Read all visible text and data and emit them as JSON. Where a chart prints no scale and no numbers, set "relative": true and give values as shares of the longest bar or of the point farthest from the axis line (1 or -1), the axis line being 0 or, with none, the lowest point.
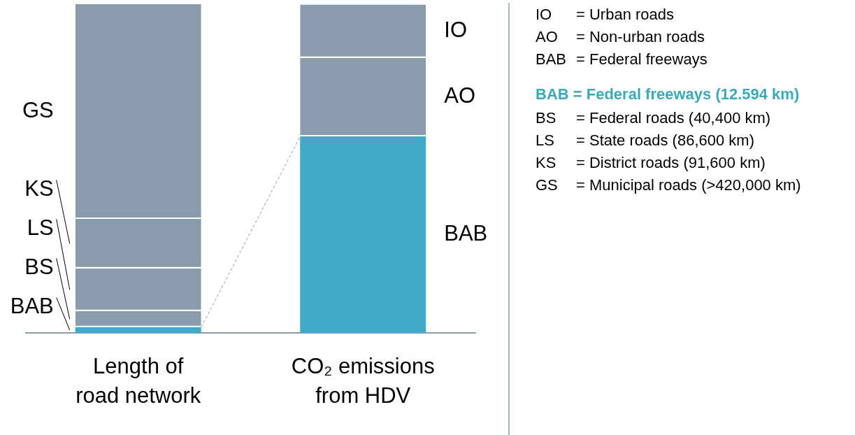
{
  "chart_data": {
    "type": "bar",
    "stacked": true,
    "relative": true,
    "legend": false,
    "grid": false,
    "categories": [
      "Length of\nroad network",
      "CO₂ emissions\nfrom HDV"
    ],
    "series": [
      {
        "name": "BAB",
        "color": "#42a9c9",
        "values": [
          0.018,
          0.598
        ]
      },
      {
        "name": "BS",
        "color": "#8a9cab",
        "values": [
          0.049,
          null
        ]
      },
      {
        "name": "LS",
        "color": "#8a9cab",
        "values": [
          0.13,
          null
        ]
      },
      {
        "name": "KS",
        "color": "#8a9cab",
        "values": [
          0.15,
          null
        ]
      },
      {
        "name": "GS",
        "color": "#8a9cab",
        "values": [
          0.653,
          null
        ]
      },
      {
        "name": "AO",
        "color": "#8a9cab",
        "values": [
          null,
          0.239
        ]
      },
      {
        "name": "IO",
        "color": "#8a9cab",
        "values": [
          null,
          0.162
        ]
      }
    ],
    "legend_title": "BAB = Federal freeways (12.594 km)",
    "annotations": [
      "IO = Urban roads",
      "AO = Non-urban roads",
      "BAB = Federal freeways",
      "BS = Federal roads (40,400 km)",
      "LS = State roads (86,600 km)",
      "KS = District roads (91,600 km)",
      "GS = Municipal roads (>420,000 km)"
    ]
  }
}
